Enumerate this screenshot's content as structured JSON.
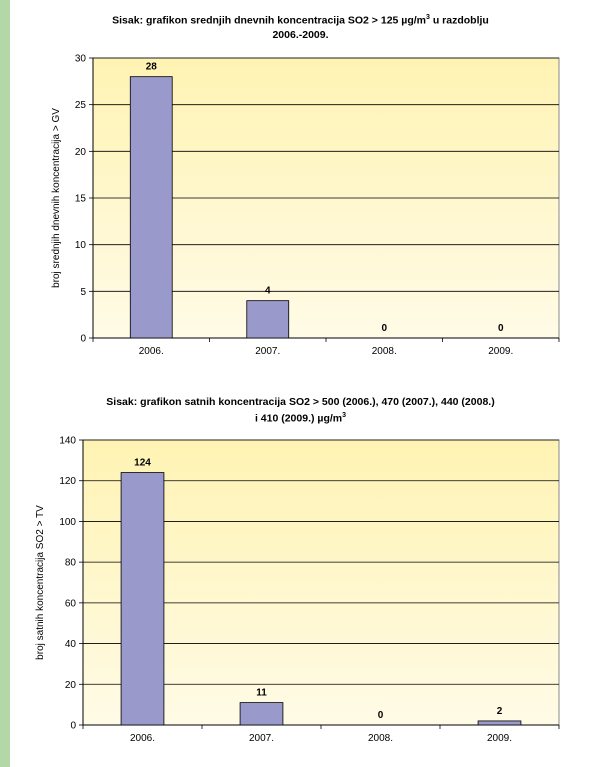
{
  "chart_data": [
    {
      "type": "bar",
      "title_line1": "Sisak: grafikon srednjih dnevnih koncentracija SO2 > 125 µg/m",
      "title_sup": "3",
      "title_line1_end": " u razdoblju",
      "title_line2": "2006.-2009.",
      "xlabel": "",
      "ylabel": "broj srednjih dnevnih koncentracija > GV",
      "categories": [
        "2006.",
        "2007.",
        "2008.",
        "2009."
      ],
      "values": [
        28,
        4,
        0,
        0
      ],
      "ylim": [
        0,
        30
      ],
      "yticks": [
        0,
        5,
        10,
        15,
        20,
        25,
        30
      ],
      "grid": true,
      "bar_color": "#9999cc",
      "plot_bg_top": "#fff3b3",
      "plot_bg_bottom": "#fffbe6"
    },
    {
      "type": "bar",
      "title_line1": "Sisak: grafikon satnih koncentracija SO2 > 500 (2006.), 470 (2007.), 440 (2008.)",
      "title_line2_start": "i 410 (2009.) µg/m",
      "title_sup": "3",
      "xlabel": "",
      "ylabel": "broj satnih koncentracija SO2 > TV",
      "categories": [
        "2006.",
        "2007.",
        "2008.",
        "2009."
      ],
      "values": [
        124,
        11,
        0,
        2
      ],
      "ylim": [
        0,
        140
      ],
      "yticks": [
        0,
        20,
        40,
        60,
        80,
        100,
        120,
        140
      ],
      "grid": true,
      "bar_color": "#9999cc",
      "plot_bg_top": "#fff3b3",
      "plot_bg_bottom": "#fffbe6"
    }
  ]
}
